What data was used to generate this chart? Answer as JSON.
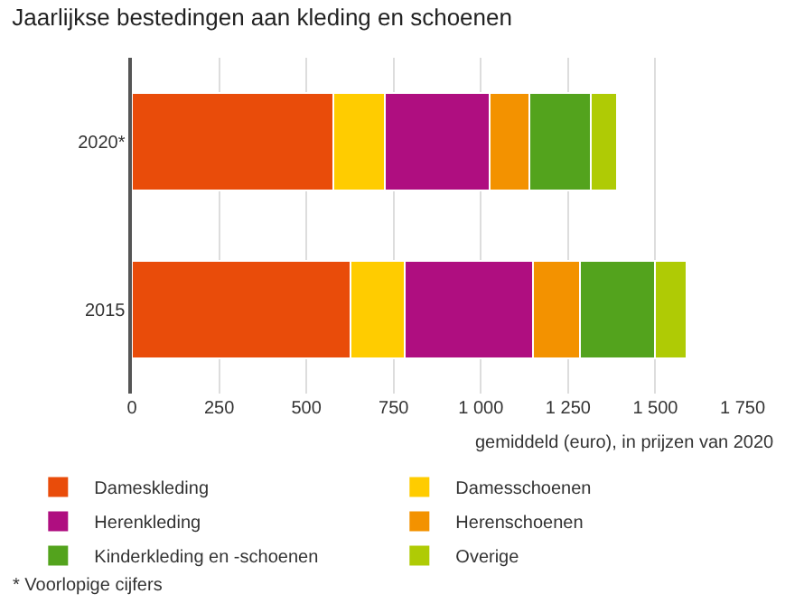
{
  "chart_data": {
    "type": "bar",
    "title": "Jaarlijkse bestedingen aan kleding en schoenen",
    "xlabel": "gemiddeld (euro), in prijzen van 2020",
    "orientation": "horizontal",
    "stacked": true,
    "categories": [
      "2020*",
      "2015"
    ],
    "series": [
      {
        "name": "Dameskleding",
        "color": "#e94c0a",
        "values": [
          578,
          626
        ]
      },
      {
        "name": "Damesschoenen",
        "color": "#ffcc00",
        "values": [
          147,
          157
        ]
      },
      {
        "name": "Herenkleding",
        "color": "#af0e80",
        "values": [
          300,
          366
        ]
      },
      {
        "name": "Herenschoenen",
        "color": "#f39200",
        "values": [
          114,
          135
        ]
      },
      {
        "name": "Kinderkleding en -schoenen",
        "color": "#53a31d",
        "values": [
          176,
          214
        ]
      },
      {
        "name": "Overige",
        "color": "#afcb05",
        "values": [
          76,
          91
        ]
      }
    ],
    "xlim": [
      0,
      1750
    ],
    "xticks": [
      0,
      250,
      500,
      750,
      {
        "value": 1000,
        "label": "1 000"
      },
      {
        "value": 1250,
        "label": "1 250"
      },
      {
        "value": 1500,
        "label": "1 500"
      },
      {
        "value": 1750,
        "label": "1 750"
      }
    ],
    "grid": "x",
    "legend": "bottom",
    "annotations": [
      "* Voorlopige cijfers"
    ]
  }
}
